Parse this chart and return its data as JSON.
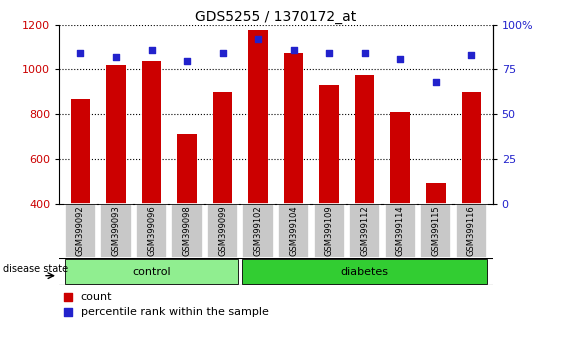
{
  "title": "GDS5255 / 1370172_at",
  "samples": [
    "GSM399092",
    "GSM399093",
    "GSM399096",
    "GSM399098",
    "GSM399099",
    "GSM399102",
    "GSM399104",
    "GSM399109",
    "GSM399112",
    "GSM399114",
    "GSM399115",
    "GSM399116"
  ],
  "counts": [
    870,
    1020,
    1040,
    710,
    900,
    1175,
    1075,
    930,
    975,
    810,
    490,
    900
  ],
  "percentiles": [
    84,
    82,
    86,
    80,
    84,
    92,
    86,
    84,
    84,
    81,
    68,
    83
  ],
  "groups": [
    "control",
    "control",
    "control",
    "control",
    "control",
    "diabetes",
    "diabetes",
    "diabetes",
    "diabetes",
    "diabetes",
    "diabetes",
    "diabetes"
  ],
  "ylim_left": [
    400,
    1200
  ],
  "ylim_right": [
    0,
    100
  ],
  "yticks_left": [
    400,
    600,
    800,
    1000,
    1200
  ],
  "yticks_right": [
    0,
    25,
    50,
    75,
    100
  ],
  "bar_color": "#cc0000",
  "dot_color": "#2222cc",
  "control_color": "#90ee90",
  "diabetes_color": "#32cd32",
  "label_bg_color": "#c8c8c8",
  "legend_count_label": "count",
  "legend_pct_label": "percentile rank within the sample",
  "group_label": "disease state"
}
